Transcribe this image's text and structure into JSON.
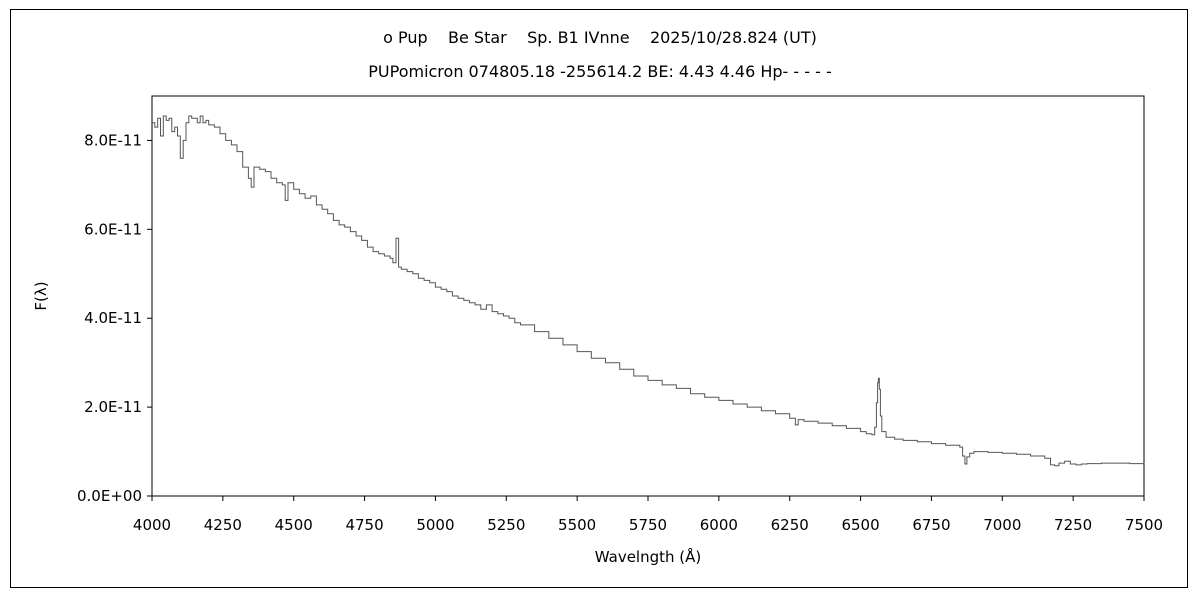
{
  "header": {
    "title_line1": "ο Pup    Be Star    Sp. B1 IVnne    2025/10/28.824 (UT)",
    "title_line2": "PUPomicron 074805.18 -255614.2 BE: 4.43 4.46 Hp- - - - -"
  },
  "chart_data": {
    "type": "line",
    "title": "ο Pup    Be Star    Sp. B1 IVnne    2025/10/28.824 (UT)",
    "subtitle": "PUPomicron 074805.18 -255614.2 BE: 4.43 4.46 Hp- - - - -",
    "xlabel": "Wavelngth (Å)",
    "ylabel": "F(λ)",
    "xlim": [
      4000,
      7500
    ],
    "ylim": [
      0,
      9e-11
    ],
    "x_ticks": [
      4000,
      4250,
      4500,
      4750,
      5000,
      5250,
      5500,
      5750,
      6000,
      6250,
      6500,
      6750,
      7000,
      7250,
      7500
    ],
    "x_tick_labels": [
      "4000",
      "4250",
      "4500",
      "4750",
      "5000",
      "5250",
      "5500",
      "5750",
      "6000",
      "6250",
      "6500",
      "6750",
      "7000",
      "7250",
      "7500"
    ],
    "y_ticks": [
      0,
      2e-11,
      4e-11,
      6e-11,
      8e-11
    ],
    "y_tick_labels": [
      "0.0E+00",
      "2.0E-11",
      "4.0E-11",
      "6.0E-11",
      "8.0E-11"
    ],
    "grid": false,
    "line_color": "#555555",
    "series": [
      {
        "x": [
          4000,
          4010,
          4020,
          4030,
          4040,
          4050,
          4060,
          4070,
          4080,
          4090,
          4100,
          4110,
          4120,
          4130,
          4140,
          4150,
          4160,
          4170,
          4180,
          4190,
          4200,
          4220,
          4240,
          4260,
          4280,
          4300,
          4320,
          4340,
          4350,
          4360,
          4380,
          4400,
          4420,
          4440,
          4460,
          4470,
          4480,
          4500,
          4520,
          4540,
          4560,
          4580,
          4600,
          4620,
          4640,
          4660,
          4680,
          4700,
          4720,
          4740,
          4760,
          4780,
          4800,
          4820,
          4840,
          4850,
          4861,
          4870,
          4880,
          4900,
          4920,
          4940,
          4960,
          4980,
          5000,
          5020,
          5040,
          5060,
          5080,
          5100,
          5120,
          5140,
          5160,
          5180,
          5200,
          5220,
          5240,
          5260,
          5280,
          5300,
          5350,
          5400,
          5450,
          5500,
          5550,
          5600,
          5650,
          5700,
          5750,
          5800,
          5850,
          5900,
          5950,
          6000,
          6050,
          6100,
          6150,
          6200,
          6250,
          6270,
          6280,
          6300,
          6350,
          6400,
          6450,
          6500,
          6520,
          6540,
          6550,
          6556,
          6560,
          6563,
          6566,
          6570,
          6575,
          6590,
          6620,
          6650,
          6700,
          6750,
          6800,
          6850,
          6860,
          6868,
          6875,
          6885,
          6900,
          6950,
          7000,
          7050,
          7100,
          7150,
          7170,
          7185,
          7200,
          7220,
          7240,
          7260,
          7280,
          7300,
          7350,
          7400,
          7450,
          7500
        ],
        "y": [
          8.4e-11,
          8.3e-11,
          8.5e-11,
          8.1e-11,
          8.55e-11,
          8.45e-11,
          8.5e-11,
          8.2e-11,
          8.3e-11,
          8.1e-11,
          7.6e-11,
          8e-11,
          8.4e-11,
          8.55e-11,
          8.5e-11,
          8.5e-11,
          8.4e-11,
          8.55e-11,
          8.4e-11,
          8.45e-11,
          8.35e-11,
          8.3e-11,
          8.15e-11,
          8e-11,
          7.9e-11,
          7.75e-11,
          7.4e-11,
          7.15e-11,
          6.95e-11,
          7.4e-11,
          7.35e-11,
          7.3e-11,
          7.15e-11,
          7.05e-11,
          7e-11,
          6.65e-11,
          7.05e-11,
          6.9e-11,
          6.8e-11,
          6.7e-11,
          6.75e-11,
          6.55e-11,
          6.45e-11,
          6.35e-11,
          6.2e-11,
          6.1e-11,
          6.05e-11,
          5.95e-11,
          5.85e-11,
          5.75e-11,
          5.6e-11,
          5.5e-11,
          5.45e-11,
          5.4e-11,
          5.35e-11,
          5.25e-11,
          5.8e-11,
          5.15e-11,
          5.1e-11,
          5.05e-11,
          5e-11,
          4.9e-11,
          4.85e-11,
          4.8e-11,
          4.7e-11,
          4.65e-11,
          4.6e-11,
          4.5e-11,
          4.45e-11,
          4.4e-11,
          4.35e-11,
          4.3e-11,
          4.2e-11,
          4.3e-11,
          4.15e-11,
          4.1e-11,
          4.05e-11,
          4e-11,
          3.9e-11,
          3.85e-11,
          3.7e-11,
          3.55e-11,
          3.4e-11,
          3.25e-11,
          3.1e-11,
          3e-11,
          2.85e-11,
          2.7e-11,
          2.6e-11,
          2.5e-11,
          2.42e-11,
          2.3e-11,
          2.22e-11,
          2.15e-11,
          2.07e-11,
          2e-11,
          1.92e-11,
          1.85e-11,
          1.75e-11,
          1.6e-11,
          1.72e-11,
          1.68e-11,
          1.64e-11,
          1.58e-11,
          1.52e-11,
          1.45e-11,
          1.4e-11,
          1.38e-11,
          1.55e-11,
          2.1e-11,
          2.55e-11,
          2.65e-11,
          2.4e-11,
          1.8e-11,
          1.45e-11,
          1.32e-11,
          1.28e-11,
          1.25e-11,
          1.22e-11,
          1.18e-11,
          1.14e-11,
          1.1e-11,
          9e-12,
          7.2e-12,
          8.8e-12,
          9.6e-12,
          1e-11,
          9.8e-12,
          9.6e-12,
          9.4e-12,
          9e-12,
          8.5e-12,
          7e-12,
          6.8e-12,
          7.4e-12,
          7.8e-12,
          7.2e-12,
          7e-12,
          7.2e-12,
          7.3e-12,
          7.4e-12,
          7.4e-12,
          7.3e-12,
          7.2e-12
        ]
      }
    ]
  }
}
